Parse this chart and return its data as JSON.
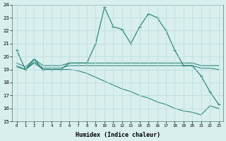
{
  "xlabel": "Humidex (Indice chaleur)",
  "bg_color": "#d8efee",
  "grid_color": "#b8dada",
  "line_color": "#1a7a6e",
  "xlim": [
    -0.5,
    23.5
  ],
  "ylim": [
    15,
    24
  ],
  "xticks": [
    0,
    1,
    2,
    3,
    4,
    5,
    6,
    7,
    8,
    9,
    10,
    11,
    12,
    13,
    14,
    15,
    16,
    17,
    18,
    19,
    20,
    21,
    22,
    23
  ],
  "yticks": [
    15,
    16,
    17,
    18,
    19,
    20,
    21,
    22,
    23,
    24
  ],
  "series1_x": [
    0,
    1,
    2,
    3,
    4,
    5,
    6,
    7,
    8,
    9,
    10,
    11,
    12,
    13,
    14,
    15,
    16,
    17,
    18,
    19,
    20,
    21,
    22,
    23
  ],
  "series1_y": [
    20.5,
    19.0,
    19.8,
    19.0,
    19.0,
    19.0,
    19.5,
    19.5,
    19.5,
    21.0,
    23.8,
    22.3,
    22.1,
    21.0,
    22.3,
    23.3,
    23.0,
    22.0,
    20.5,
    19.3,
    19.3,
    18.5,
    17.3,
    16.3
  ],
  "series2_x": [
    0,
    1,
    2,
    3,
    4,
    5,
    6,
    7,
    8,
    9,
    10,
    11,
    12,
    13,
    14,
    15,
    16,
    17,
    18,
    19,
    20,
    21,
    22,
    23
  ],
  "series2_y": [
    19.5,
    19.2,
    19.8,
    19.3,
    19.3,
    19.3,
    19.5,
    19.5,
    19.5,
    19.5,
    19.5,
    19.5,
    19.5,
    19.5,
    19.5,
    19.5,
    19.5,
    19.5,
    19.5,
    19.5,
    19.5,
    19.3,
    19.3,
    19.3
  ],
  "series3_x": [
    0,
    1,
    2,
    3,
    4,
    5,
    6,
    7,
    8,
    9,
    10,
    11,
    12,
    13,
    14,
    15,
    16,
    17,
    18,
    19,
    20,
    21,
    22,
    23
  ],
  "series3_y": [
    19.3,
    19.0,
    19.6,
    19.1,
    19.1,
    19.1,
    19.3,
    19.3,
    19.3,
    19.3,
    19.3,
    19.3,
    19.3,
    19.3,
    19.3,
    19.3,
    19.3,
    19.3,
    19.3,
    19.3,
    19.3,
    19.1,
    19.1,
    19.0
  ],
  "series4_x": [
    0,
    1,
    2,
    3,
    4,
    5,
    6,
    7,
    8,
    9,
    10,
    11,
    12,
    13,
    14,
    15,
    16,
    17,
    18,
    19,
    20,
    21,
    22,
    23
  ],
  "series4_y": [
    19.2,
    19.0,
    19.5,
    19.0,
    19.0,
    19.0,
    19.0,
    18.9,
    18.7,
    18.4,
    18.1,
    17.8,
    17.5,
    17.3,
    17.0,
    16.8,
    16.5,
    16.3,
    16.0,
    15.8,
    15.7,
    15.5,
    16.2,
    16.0
  ]
}
